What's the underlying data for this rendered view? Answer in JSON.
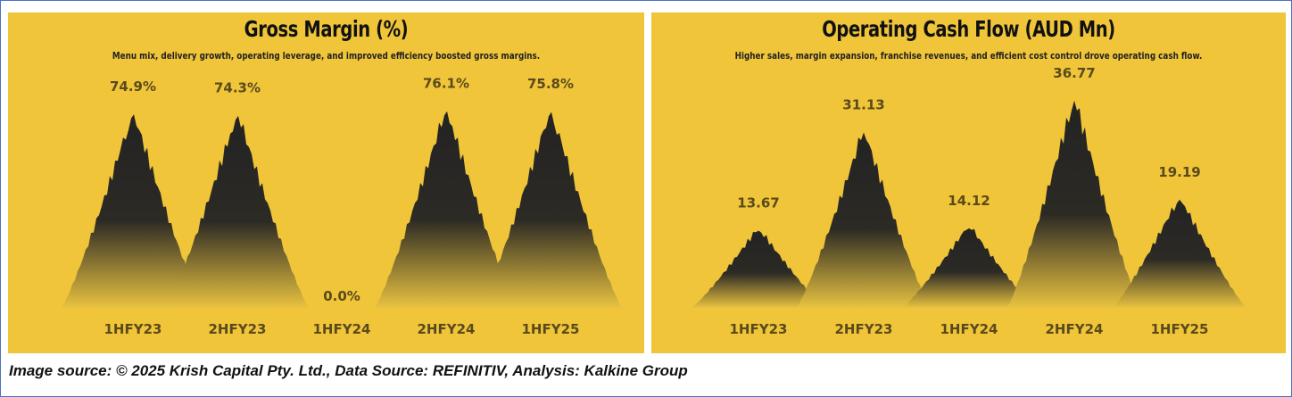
{
  "chart_data": [
    {
      "type": "area",
      "title": "Gross Margin (%)",
      "subtitle": "Menu mix, delivery growth, operating leverage, and improved efficiency boosted gross margins.",
      "categories": [
        "1HFY23",
        "2HFY23",
        "1HFY24",
        "2HFY24",
        "1HFY25"
      ],
      "values": [
        74.9,
        74.3,
        0.0,
        76.1,
        75.8
      ],
      "labels": [
        "74.9%",
        "74.3%",
        "0.0%",
        "76.1%",
        "75.8%"
      ],
      "ylim": [
        0,
        80
      ],
      "grid": false
    },
    {
      "type": "area",
      "title": "Operating Cash Flow (AUD Mn)",
      "subtitle": "Higher sales, margin expansion, franchise revenues, and efficient cost control drove operating cash flow.",
      "categories": [
        "1HFY23",
        "2HFY23",
        "1HFY24",
        "2HFY24",
        "1HFY25"
      ],
      "values": [
        13.67,
        31.13,
        14.12,
        36.77,
        19.19
      ],
      "labels": [
        "13.67",
        "31.13",
        "14.12",
        "36.77",
        "19.19"
      ],
      "ylim": [
        0,
        38
      ],
      "grid": false
    }
  ],
  "caption": "Image source: © 2025 Krish Capital Pty. Ltd., Data Source: REFINITIV, Analysis: Kalkine Group",
  "colors": {
    "panel": "#f0c53a",
    "peak": "#262626",
    "label": "#5a4a1a",
    "border": "#4a72c4"
  }
}
